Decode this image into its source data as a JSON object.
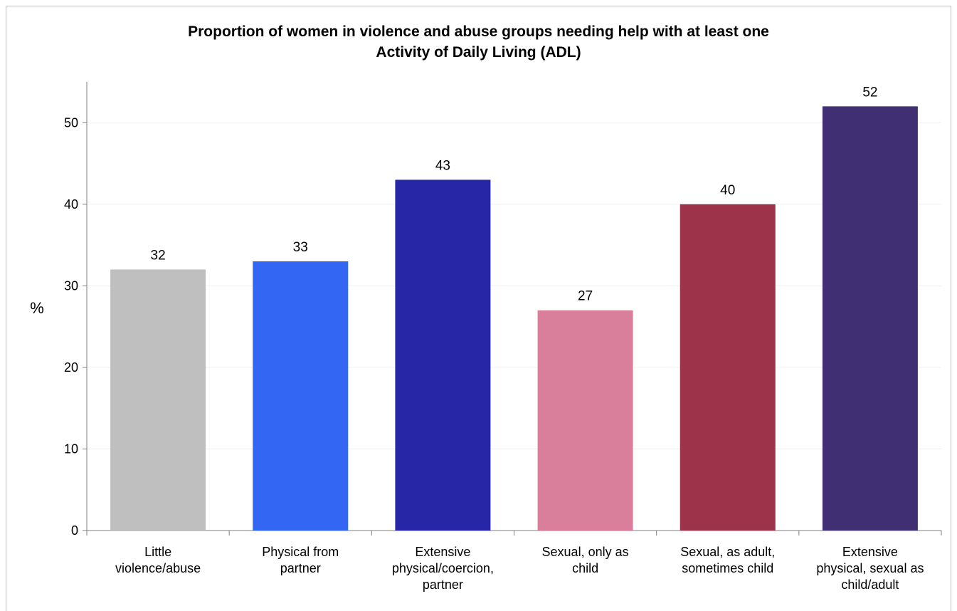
{
  "chart_data": {
    "type": "bar",
    "title_lines": [
      "Proportion of women in violence and abuse groups needing help with at least one",
      "Activity of Daily Living (ADL)"
    ],
    "ylabel": "%",
    "xlabel": "",
    "ylim": [
      0,
      55
    ],
    "yticks": [
      0,
      10,
      20,
      30,
      40,
      50
    ],
    "grid": true,
    "categories": [
      [
        "Little",
        "violence/abuse"
      ],
      [
        "Physical from",
        "partner"
      ],
      [
        "Extensive",
        "physical/coercion,",
        "partner"
      ],
      [
        "Sexual, only as",
        "child"
      ],
      [
        "Sexual, as adult,",
        "sometimes child"
      ],
      [
        "Extensive",
        "physical, sexual as",
        "child/adult"
      ]
    ],
    "values": [
      32,
      33,
      43,
      27,
      40,
      52
    ],
    "colors": [
      "#bfbfbf",
      "#3366f2",
      "#2626a6",
      "#d97f9c",
      "#9c334a",
      "#403073"
    ]
  }
}
